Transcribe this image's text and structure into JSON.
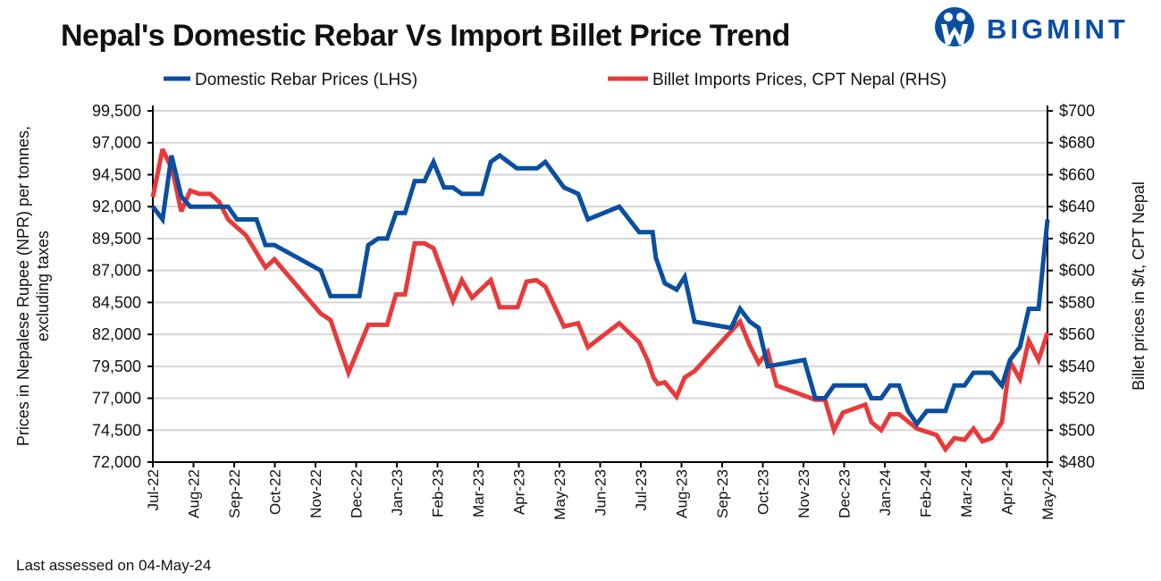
{
  "logo": {
    "text": "BIGMINT",
    "color": "#0a4ea2"
  },
  "footer": "Last assessed on 04-May-24",
  "chart_data": {
    "type": "line",
    "title": "Nepal's Domestic Rebar Vs Import Billet Price Trend",
    "ylabel": "Prices in Nepalese Rupee (NPR) per tonnes, excluding taxes",
    "ylabel_lines": [
      "Prices in Nepalese Rupee (NPR) per tonnes,",
      "excluding taxes"
    ],
    "y2label": "Billet prices in $/t, CPT Nepal",
    "x_tick_labels": [
      "Jul-22",
      "Aug-22",
      "Sep-22",
      "Oct-22",
      "Nov-22",
      "Dec-22",
      "Jan-23",
      "Feb-23",
      "Mar-23",
      "Apr-23",
      "May-23",
      "Jun-23",
      "Jul-23",
      "Aug-23",
      "Sep-23",
      "Oct-23",
      "Nov-23",
      "Dec-23",
      "Jan-24",
      "Feb-24",
      "Mar-24",
      "Apr-24",
      "May-24"
    ],
    "x_unit": "months since Jul-22",
    "ylim": [
      72000,
      99500
    ],
    "y_ticks": [
      "72,000",
      "74,500",
      "77,000",
      "79,500",
      "82,000",
      "84,500",
      "87,000",
      "89,500",
      "92,000",
      "94,500",
      "97,000",
      "99,500"
    ],
    "y2lim": [
      480,
      700
    ],
    "y2_ticks": [
      "$480",
      "$500",
      "$520",
      "$540",
      "$560",
      "$580",
      "$600",
      "$620",
      "$640",
      "$660",
      "$680",
      "$700"
    ],
    "grid": true,
    "legend_position": "top",
    "series": [
      {
        "name": "Domestic Rebar Prices (LHS)",
        "axis": "left",
        "color": "#0a4fa0",
        "points": [
          [
            0,
            92000
          ],
          [
            0.24,
            91000
          ],
          [
            0.46,
            96000
          ],
          [
            0.7,
            92800
          ],
          [
            0.92,
            92000
          ],
          [
            1.85,
            92000
          ],
          [
            2.07,
            91000
          ],
          [
            2.55,
            91000
          ],
          [
            2.77,
            89000
          ],
          [
            2.99,
            89000
          ],
          [
            4.13,
            87000
          ],
          [
            4.37,
            85000
          ],
          [
            5.08,
            85000
          ],
          [
            5.3,
            89000
          ],
          [
            5.54,
            89500
          ],
          [
            5.76,
            89500
          ],
          [
            5.98,
            91500
          ],
          [
            6.2,
            91500
          ],
          [
            6.44,
            94000
          ],
          [
            6.68,
            94000
          ],
          [
            6.9,
            95500
          ],
          [
            7.16,
            93500
          ],
          [
            7.38,
            93500
          ],
          [
            7.6,
            93000
          ],
          [
            8.09,
            93000
          ],
          [
            8.31,
            95500
          ],
          [
            8.53,
            96000
          ],
          [
            8.95,
            95000
          ],
          [
            9.45,
            95000
          ],
          [
            9.65,
            95500
          ],
          [
            10.11,
            93500
          ],
          [
            10.46,
            93000
          ],
          [
            10.7,
            91000
          ],
          [
            11.47,
            92000
          ],
          [
            11.96,
            90000
          ],
          [
            12.29,
            90000
          ],
          [
            12.37,
            88000
          ],
          [
            12.59,
            86000
          ],
          [
            12.88,
            85500
          ],
          [
            13.08,
            86500
          ],
          [
            13.32,
            83000
          ],
          [
            14.22,
            82500
          ],
          [
            14.44,
            84000
          ],
          [
            14.68,
            83000
          ],
          [
            14.9,
            82500
          ],
          [
            15.12,
            79500
          ],
          [
            16.02,
            80000
          ],
          [
            16.29,
            77000
          ],
          [
            16.53,
            77000
          ],
          [
            16.75,
            78000
          ],
          [
            17.52,
            78000
          ],
          [
            17.67,
            77000
          ],
          [
            17.91,
            77000
          ],
          [
            18.13,
            78000
          ],
          [
            18.35,
            78000
          ],
          [
            18.57,
            76000
          ],
          [
            18.79,
            75000
          ],
          [
            19.03,
            76000
          ],
          [
            19.49,
            76000
          ],
          [
            19.71,
            78000
          ],
          [
            19.96,
            78000
          ],
          [
            20.18,
            79000
          ],
          [
            20.62,
            79000
          ],
          [
            20.88,
            78000
          ],
          [
            21.08,
            80000
          ],
          [
            21.32,
            81000
          ],
          [
            21.54,
            84000
          ],
          [
            21.78,
            84000
          ],
          [
            22,
            91000
          ]
        ]
      },
      {
        "name": "Billet Imports Prices, CPT Nepal (RHS)",
        "axis": "right",
        "color": "#e83a3a",
        "points": [
          [
            0,
            646
          ],
          [
            0.24,
            676
          ],
          [
            0.48,
            663
          ],
          [
            0.7,
            637
          ],
          [
            0.92,
            650
          ],
          [
            1.14,
            648
          ],
          [
            1.41,
            648
          ],
          [
            1.63,
            643
          ],
          [
            1.85,
            632
          ],
          [
            2.29,
            622
          ],
          [
            2.77,
            602
          ],
          [
            2.99,
            607
          ],
          [
            4.13,
            573
          ],
          [
            4.37,
            569
          ],
          [
            4.81,
            536
          ],
          [
            5.3,
            566
          ],
          [
            5.76,
            566
          ],
          [
            5.98,
            585
          ],
          [
            6.2,
            585
          ],
          [
            6.44,
            617
          ],
          [
            6.68,
            617
          ],
          [
            6.9,
            614
          ],
          [
            7.38,
            581
          ],
          [
            7.6,
            594
          ],
          [
            7.85,
            583
          ],
          [
            8.31,
            594
          ],
          [
            8.53,
            577
          ],
          [
            8.97,
            577
          ],
          [
            9.19,
            593
          ],
          [
            9.43,
            594
          ],
          [
            9.65,
            590
          ],
          [
            10.11,
            565
          ],
          [
            10.46,
            567
          ],
          [
            10.7,
            552
          ],
          [
            11.47,
            567
          ],
          [
            11.96,
            555
          ],
          [
            12.18,
            543
          ],
          [
            12.31,
            533
          ],
          [
            12.42,
            529
          ],
          [
            12.59,
            530
          ],
          [
            12.88,
            521
          ],
          [
            13.08,
            533
          ],
          [
            13.32,
            537
          ],
          [
            14.44,
            568
          ],
          [
            14.68,
            553
          ],
          [
            14.9,
            542
          ],
          [
            15.12,
            549
          ],
          [
            15.34,
            528
          ],
          [
            16.29,
            519
          ],
          [
            16.53,
            519
          ],
          [
            16.75,
            500
          ],
          [
            16.97,
            511
          ],
          [
            17.52,
            516
          ],
          [
            17.67,
            505
          ],
          [
            17.91,
            500
          ],
          [
            18.13,
            510
          ],
          [
            18.35,
            510
          ],
          [
            18.79,
            501
          ],
          [
            19.27,
            497
          ],
          [
            19.49,
            488
          ],
          [
            19.71,
            495
          ],
          [
            19.96,
            494
          ],
          [
            20.18,
            501
          ],
          [
            20.4,
            493
          ],
          [
            20.62,
            495
          ],
          [
            20.88,
            505
          ],
          [
            21.08,
            543
          ],
          [
            21.32,
            532
          ],
          [
            21.54,
            556
          ],
          [
            21.78,
            544
          ],
          [
            22,
            561
          ]
        ]
      }
    ]
  }
}
